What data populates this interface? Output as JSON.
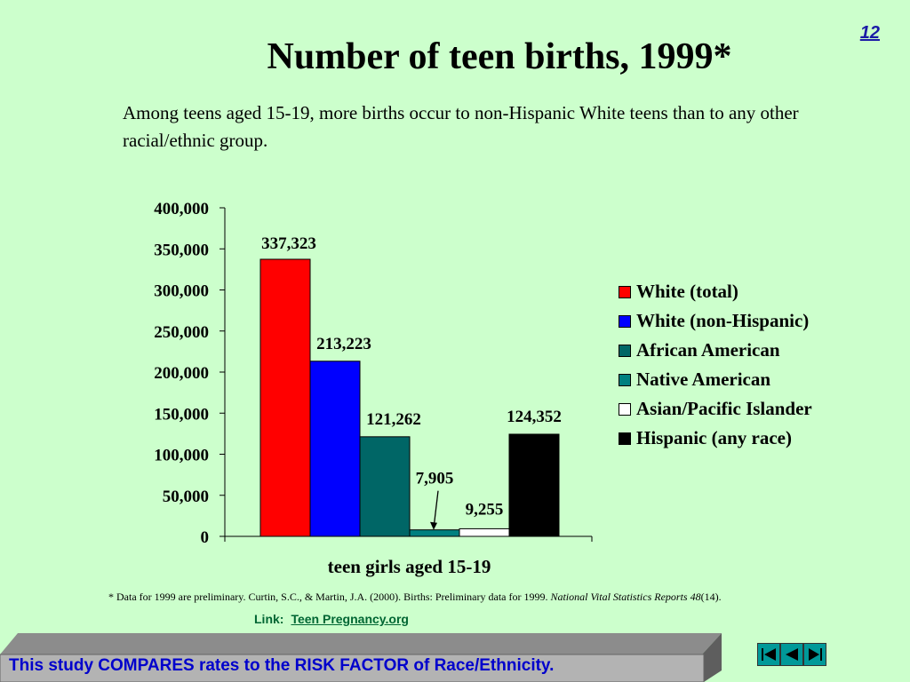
{
  "slide": {
    "number": "12"
  },
  "title": "Number of teen births, 1999*",
  "subtitle": "Among teens aged 15-19, more births occur to non-Hispanic White teens than to any other racial/ethnic group.",
  "chart_data": {
    "type": "bar",
    "categories": [
      "teen girls aged 15-19"
    ],
    "xlabel": "teen girls aged 15-19",
    "ylabel": "",
    "ylim": [
      0,
      400000
    ],
    "yticks": [
      0,
      50000,
      100000,
      150000,
      200000,
      250000,
      300000,
      350000,
      400000
    ],
    "ytick_labels": [
      "0",
      "50,000",
      "100,000",
      "150,000",
      "200,000",
      "250,000",
      "300,000",
      "350,000",
      "400,000"
    ],
    "grid": false,
    "legend_position": "right",
    "series": [
      {
        "name": "White (total)",
        "values": [
          337323
        ],
        "label": "337,323",
        "color": "#ff0000"
      },
      {
        "name": "White (non-Hispanic)",
        "values": [
          213223
        ],
        "label": "213,223",
        "color": "#0000ff"
      },
      {
        "name": "African American",
        "values": [
          121262
        ],
        "label": "121,262",
        "color": "#006666"
      },
      {
        "name": "Native American",
        "values": [
          7905
        ],
        "label": "7,905",
        "color": "#008080"
      },
      {
        "name": "Asian/Pacific Islander",
        "values": [
          9255
        ],
        "label": "9,255",
        "color": "#ffffff"
      },
      {
        "name": "Hispanic (any race)",
        "values": [
          124352
        ],
        "label": "124,352",
        "color": "#000000"
      }
    ]
  },
  "footnote": {
    "text": "* Data for 1999 are preliminary.  Curtin, S.C., & Martin, J.A. (2000). Births: Preliminary data for 1999. ",
    "journal": "National Vital Statistics Reports 48",
    "issue": "(14)."
  },
  "link": {
    "prefix": "Link:",
    "text": "Teen Pregnancy.org"
  },
  "banner": {
    "text": "This study COMPARES rates to the RISK FACTOR of Race/Ethnicity."
  },
  "nav": {
    "icons": [
      "first-slide-icon",
      "previous-slide-icon",
      "next-slide-icon"
    ]
  }
}
